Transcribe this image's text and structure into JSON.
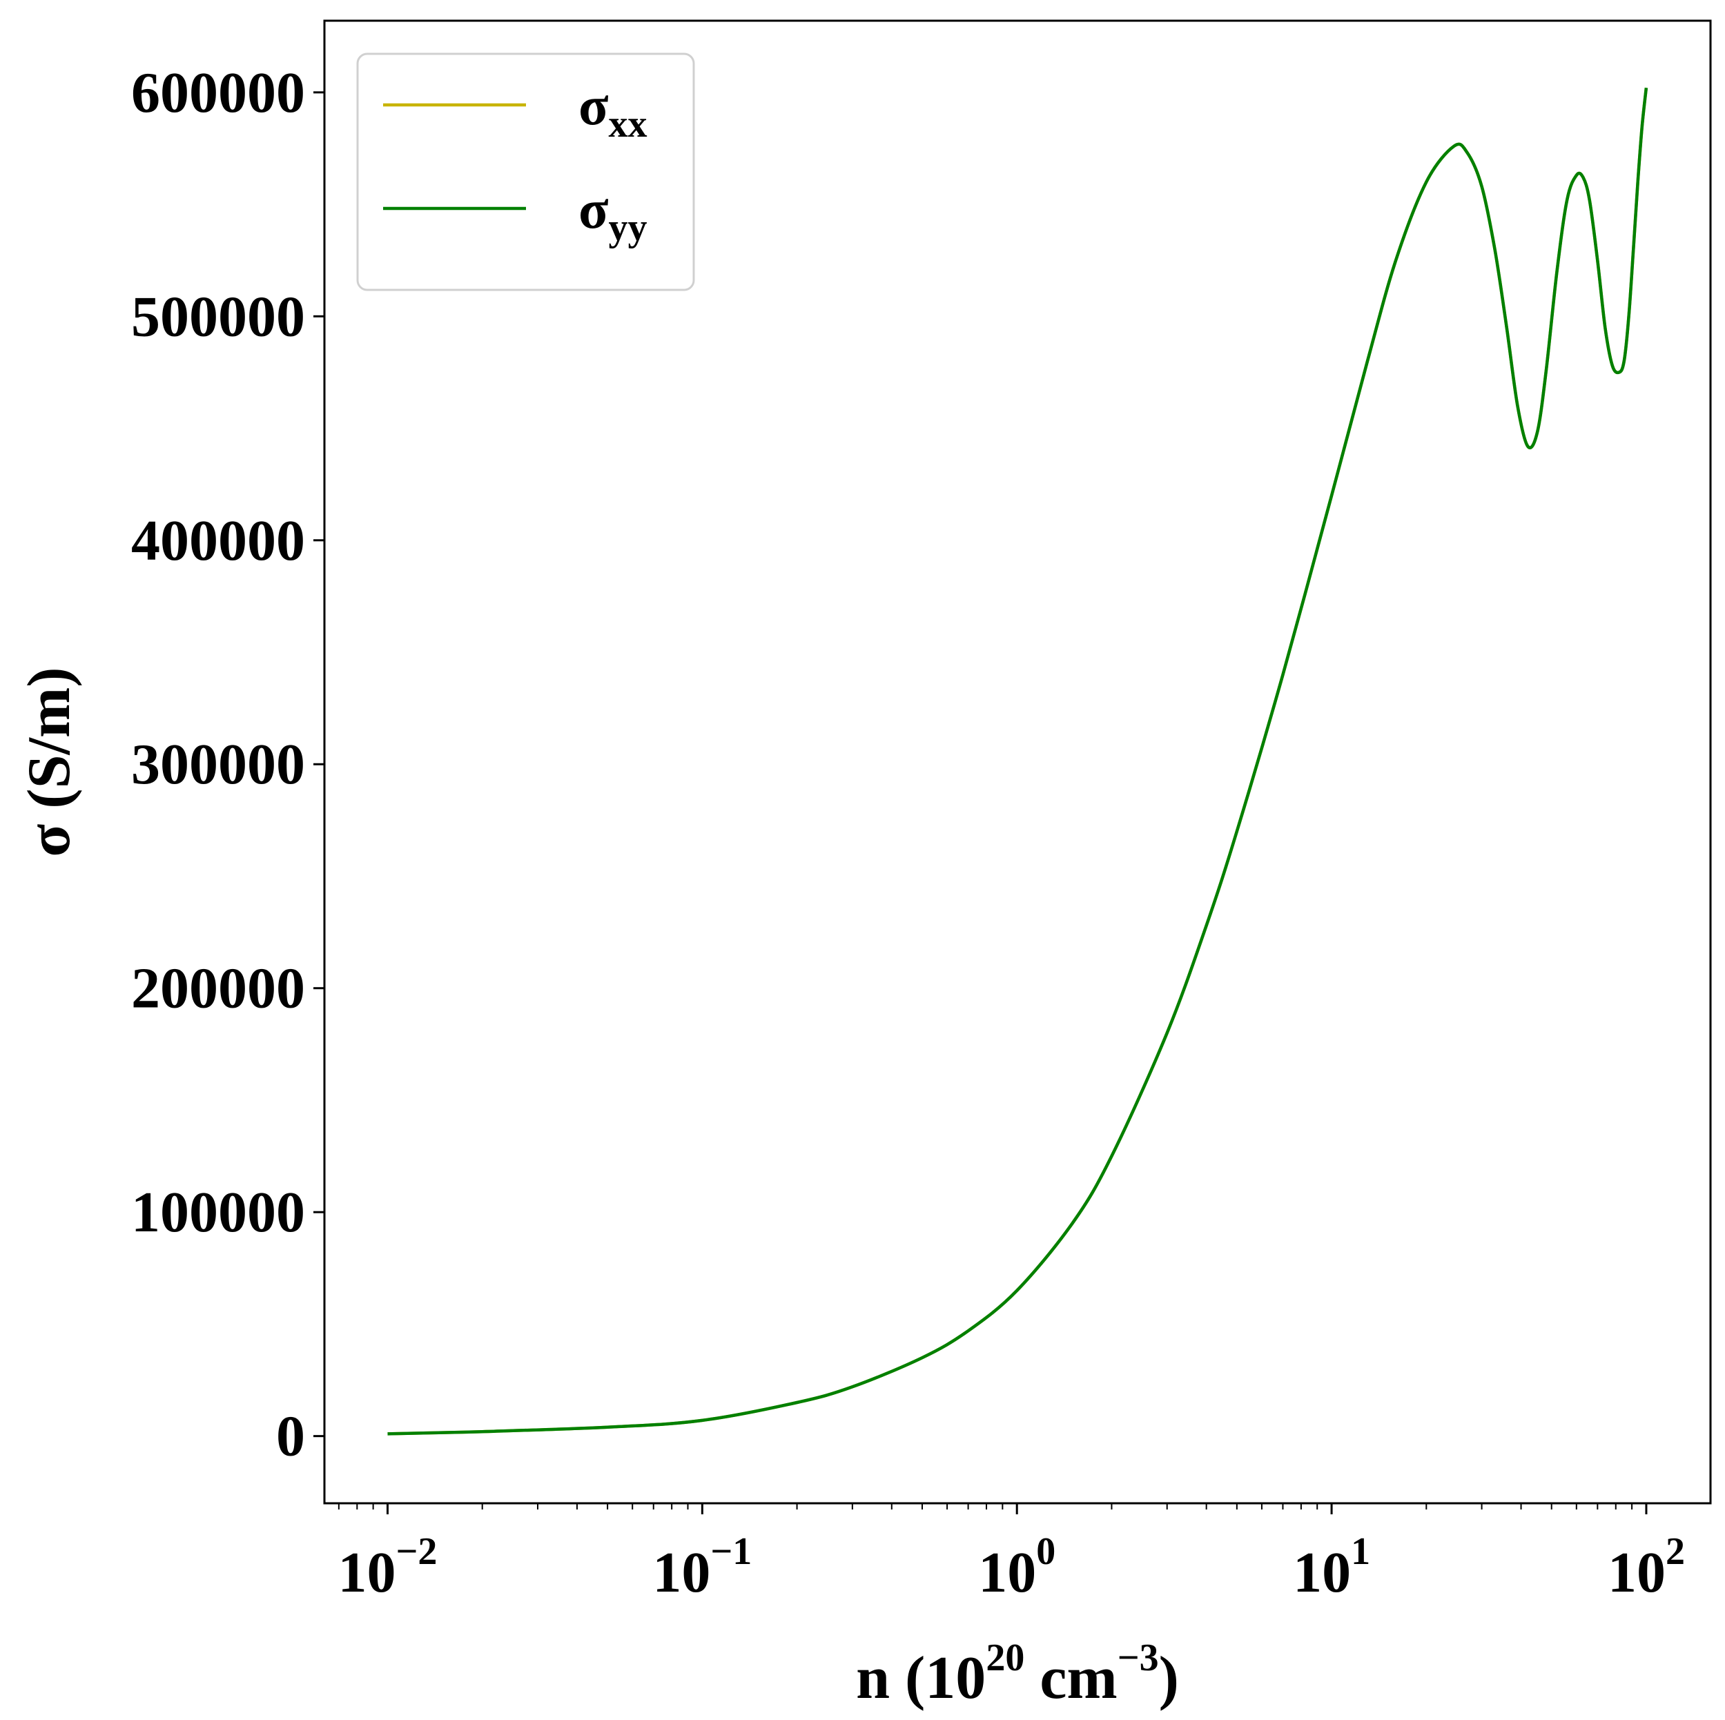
{
  "chart_data": {
    "type": "line",
    "xscale": "log",
    "xlim": [
      0.0063,
      160
    ],
    "ylim": [
      -30000,
      632000
    ],
    "xlabel": {
      "base": "n (10",
      "exp1": "20",
      "mid": " cm",
      "exp2": "−3",
      "end": ")"
    },
    "ylabel": "σ (S/m)",
    "xticks": [
      {
        "value": 0.01,
        "base": "10",
        "exp": "−2"
      },
      {
        "value": 0.1,
        "base": "10",
        "exp": "−1"
      },
      {
        "value": 1,
        "base": "10",
        "exp": "0"
      },
      {
        "value": 10,
        "base": "10",
        "exp": "1"
      },
      {
        "value": 100,
        "base": "10",
        "exp": "2"
      }
    ],
    "yticks": [
      {
        "value": 0,
        "label": "0"
      },
      {
        "value": 100000,
        "label": "100000"
      },
      {
        "value": 200000,
        "label": "200000"
      },
      {
        "value": 300000,
        "label": "300000"
      },
      {
        "value": 400000,
        "label": "400000"
      },
      {
        "value": 500000,
        "label": "500000"
      },
      {
        "value": 600000,
        "label": "600000"
      }
    ],
    "legend": {
      "placement": "top-left"
    },
    "series": [
      {
        "name": "σxx",
        "base": "σ",
        "sub": "xx",
        "color": "#c8b400",
        "x": [
          0.01,
          0.02,
          0.05,
          0.1,
          0.2,
          0.3,
          0.5,
          0.7,
          1.0,
          1.5,
          2.0,
          3.0,
          4.0,
          5.0,
          7.0,
          10.0,
          13.0,
          16.0,
          20.0,
          24.5,
          27.0,
          30.0,
          33.0,
          36.0,
          39.0,
          42.0,
          45.0,
          48.0,
          52.0,
          56.0,
          60.0,
          63.0,
          66.0,
          70.0,
          74.0,
          78.0,
          82.0,
          85.0,
          88.0,
          91.0,
          94.0,
          97.0,
          100.0
        ],
        "y": [
          1000,
          2000,
          4000,
          7000,
          15000,
          22000,
          35000,
          47000,
          65000,
          95000,
          125000,
          180000,
          228000,
          270000,
          340000,
          420000,
          480000,
          525000,
          560000,
          576000,
          573000,
          558000,
          530000,
          495000,
          460000,
          442000,
          448000,
          475000,
          520000,
          552000,
          563000,
          562000,
          552000,
          525000,
          495000,
          478000,
          475000,
          480000,
          500000,
          530000,
          560000,
          585000,
          602000
        ]
      },
      {
        "name": "σyy",
        "base": "σ",
        "sub": "yy",
        "color": "#008000",
        "x": [
          0.01,
          0.02,
          0.05,
          0.1,
          0.2,
          0.3,
          0.5,
          0.7,
          1.0,
          1.5,
          2.0,
          3.0,
          4.0,
          5.0,
          7.0,
          10.0,
          13.0,
          16.0,
          20.0,
          24.5,
          27.0,
          30.0,
          33.0,
          36.0,
          39.0,
          42.0,
          45.0,
          48.0,
          52.0,
          56.0,
          60.0,
          63.0,
          66.0,
          70.0,
          74.0,
          78.0,
          82.0,
          85.0,
          88.0,
          91.0,
          94.0,
          97.0,
          100.0
        ],
        "y": [
          1000,
          2000,
          4000,
          7000,
          15000,
          22000,
          35000,
          47000,
          65000,
          95000,
          125000,
          180000,
          228000,
          270000,
          340000,
          420000,
          480000,
          525000,
          560000,
          576000,
          573000,
          558000,
          530000,
          495000,
          460000,
          442000,
          448000,
          475000,
          520000,
          552000,
          563000,
          562000,
          552000,
          525000,
          495000,
          478000,
          475000,
          480000,
          500000,
          530000,
          560000,
          585000,
          602000
        ]
      }
    ]
  }
}
